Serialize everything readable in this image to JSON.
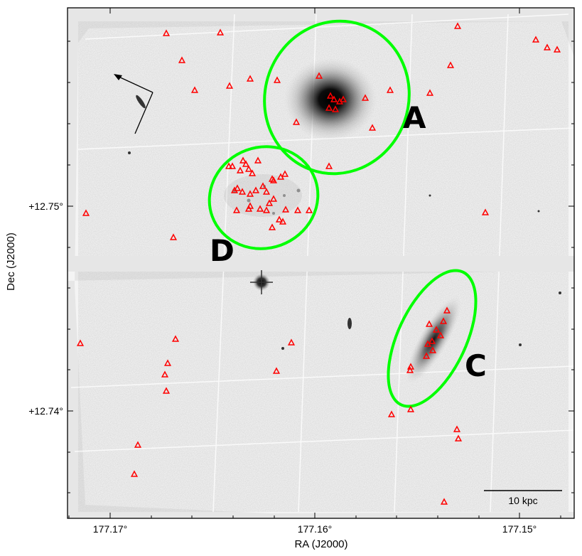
{
  "axes": {
    "xlabel": "RA (J2000)",
    "ylabel": "Dec (J2000)",
    "x_ticks": [
      "177.17°",
      "177.16°",
      "177.15°"
    ],
    "y_ticks": [
      "+12.75°",
      "+12.74°"
    ]
  },
  "regions": [
    {
      "name": "A",
      "color": "#00ff00"
    },
    {
      "name": "D",
      "color": "#00ff00"
    },
    {
      "name": "C",
      "color": "#00ff00"
    }
  ],
  "scale_bar": {
    "label": "10 kpc"
  },
  "marker_color": "#ff0000",
  "ellipse_color": "#00ff00",
  "compass": {
    "arrows": "north-east"
  }
}
